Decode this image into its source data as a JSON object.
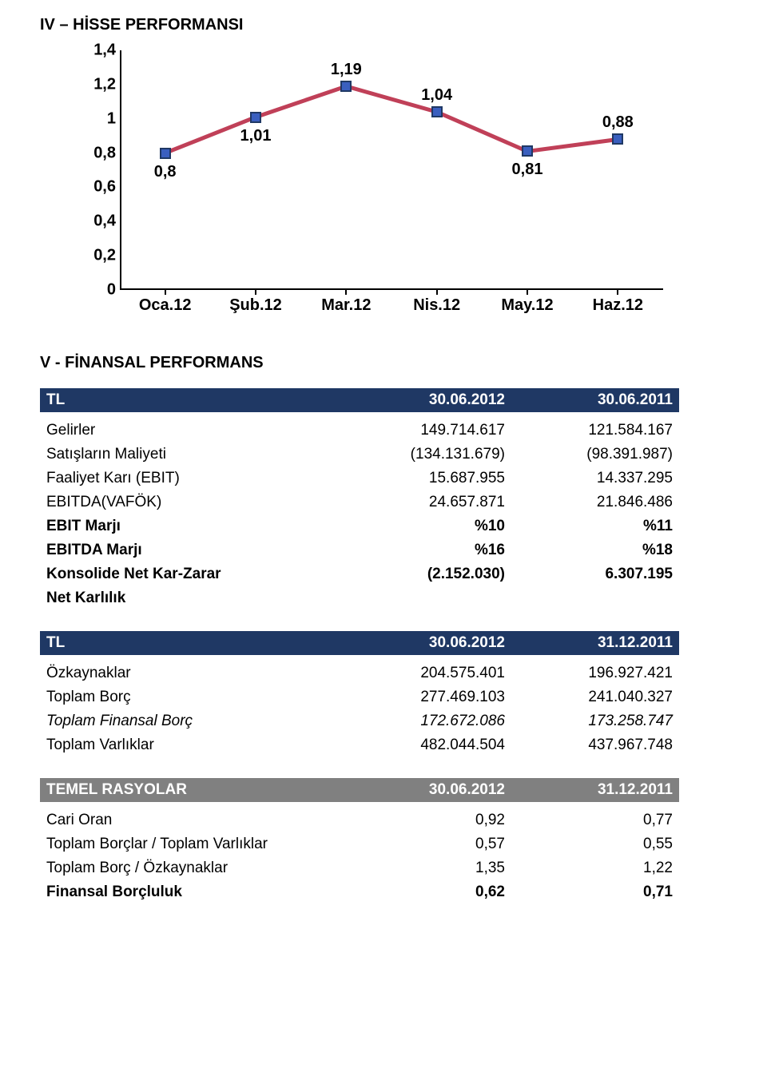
{
  "section4_title": "IV – HİSSE PERFORMANSI",
  "section5_title": "V - FİNANSAL PERFORMANS",
  "chart": {
    "type": "line",
    "categories": [
      "Oca.12",
      "Şub.12",
      "Mar.12",
      "Nis.12",
      "May.12",
      "Haz.12"
    ],
    "values": [
      0.8,
      1.01,
      1.19,
      1.04,
      0.81,
      0.88
    ],
    "labels": [
      "0,8",
      "1,01",
      "1,19",
      "1,04",
      "0,81",
      "0,88"
    ],
    "label_position": [
      "below",
      "below",
      "above",
      "above",
      "below",
      "above"
    ],
    "ylim": [
      0,
      1.4
    ],
    "ytick_step": 0.2,
    "ytick_labels": [
      "0",
      "0,2",
      "0,4",
      "0,6",
      "0,8",
      "1",
      "1,2",
      "1,4"
    ],
    "line_color": "#c04058",
    "line_width": 5,
    "marker_fill": "#3a5fbf",
    "marker_border": "#1f3864",
    "marker_size": 14,
    "background_color": "#ffffff",
    "axis_color": "#000000",
    "label_fontsize": 20,
    "label_fontweight": "bold"
  },
  "fin_perf": {
    "header": {
      "c1": "TL",
      "c2": "30.06.2012",
      "c3": "30.06.2011"
    },
    "rows": [
      {
        "c1": "Gelirler",
        "c2": "149.714.617",
        "c3": "121.584.167",
        "bold": false
      },
      {
        "c1": "Satışların Maliyeti",
        "c2": "(134.131.679)",
        "c3": "(98.391.987)",
        "bold": false
      },
      {
        "c1": "Faaliyet Karı (EBIT)",
        "c2": "15.687.955",
        "c3": "14.337.295",
        "bold": false
      },
      {
        "c1": "EBITDA(VAFÖK)",
        "c2": "24.657.871",
        "c3": "21.846.486",
        "bold": false
      },
      {
        "c1": "EBIT Marjı",
        "c2": "%10",
        "c3": "%11",
        "bold": true
      },
      {
        "c1": "EBITDA Marjı",
        "c2": "%16",
        "c3": "%18",
        "bold": true
      },
      {
        "c1": "Konsolide Net Kar-Zarar",
        "c2": "(2.152.030)",
        "c3": "6.307.195",
        "bold": true
      },
      {
        "c1": "Net Karlılık",
        "c2": "",
        "c3": "",
        "bold": true
      }
    ]
  },
  "balance": {
    "header": {
      "c1": "TL",
      "c2": "30.06.2012",
      "c3": "31.12.2011"
    },
    "rows": [
      {
        "c1": "Özkaynaklar",
        "c2": "204.575.401",
        "c3": "196.927.421",
        "italic": false
      },
      {
        "c1": "Toplam Borç",
        "c2": "277.469.103",
        "c3": "241.040.327",
        "italic": false
      },
      {
        "c1": "Toplam Finansal Borç",
        "c2": "172.672.086",
        "c3": "173.258.747",
        "italic": true
      },
      {
        "c1": "Toplam Varlıklar",
        "c2": "482.044.504",
        "c3": "437.967.748",
        "italic": false
      }
    ]
  },
  "ratios": {
    "header": {
      "c1": "TEMEL RASYOLAR",
      "c2": "30.06.2012",
      "c3": "31.12.2011"
    },
    "rows": [
      {
        "c1": "Cari Oran",
        "c2": "0,92",
        "c3": "0,77",
        "bold": false
      },
      {
        "c1": "Toplam Borçlar / Toplam Varlıklar",
        "c2": "0,57",
        "c3": "0,55",
        "bold": false
      },
      {
        "c1": "Toplam Borç / Özkaynaklar",
        "c2": "1,35",
        "c3": "1,22",
        "bold": false
      },
      {
        "c1": "Finansal Borçluluk",
        "c2": "0,62",
        "c3": "0,71",
        "bold": true
      }
    ]
  }
}
